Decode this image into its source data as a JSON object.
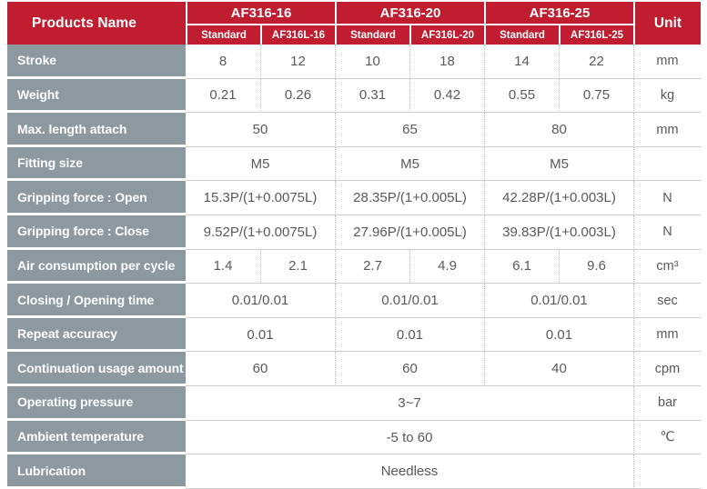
{
  "table": {
    "corner_label": "Products Name",
    "unit_label": "Unit",
    "groups": [
      {
        "label": "AF316-16",
        "sub": [
          "Standard",
          "AF316L-16"
        ]
      },
      {
        "label": "AF316-20",
        "sub": [
          "Standard",
          "AF316L-20"
        ]
      },
      {
        "label": "AF316-25",
        "sub": [
          "Standard",
          "AF316L-25"
        ]
      }
    ],
    "rows": [
      {
        "label": "Stroke",
        "span": "each",
        "values": [
          "8",
          "12",
          "10",
          "18",
          "14",
          "22"
        ],
        "unit": "mm"
      },
      {
        "label": "Weight",
        "span": "each",
        "values": [
          "0.21",
          "0.26",
          "0.31",
          "0.42",
          "0.55",
          "0.75"
        ],
        "unit": "kg"
      },
      {
        "label": "Max. length attach",
        "span": "pair",
        "values": [
          "50",
          "65",
          "80"
        ],
        "unit": "mm"
      },
      {
        "label": "Fitting size",
        "span": "pair",
        "values": [
          "M5",
          "M5",
          "M5"
        ],
        "unit": ""
      },
      {
        "label": "Gripping force : Open",
        "span": "pair",
        "values": [
          "15.3P/(1+0.0075L)",
          "28.35P/(1+0.005L)",
          "42.28P/(1+0.003L)"
        ],
        "unit": "N"
      },
      {
        "label": "Gripping force : Close",
        "span": "pair",
        "values": [
          "9.52P/(1+0.0075L)",
          "27.96P/(1+0.005L)",
          "39.83P/(1+0.003L)"
        ],
        "unit": "N"
      },
      {
        "label": "Air consumption per cycle",
        "span": "each",
        "values": [
          "1.4",
          "2.1",
          "2.7",
          "4.9",
          "6.1",
          "9.6"
        ],
        "unit": "cm³"
      },
      {
        "label": "Closing / Opening time",
        "span": "pair",
        "values": [
          "0.01/0.01",
          "0.01/0.01",
          "0.01/0.01"
        ],
        "unit": "sec"
      },
      {
        "label": "Repeat accuracy",
        "span": "pair",
        "values": [
          "0.01",
          "0.01",
          "0.01"
        ],
        "unit": "mm"
      },
      {
        "label": "Continuation usage amount",
        "span": "pair",
        "values": [
          "60",
          "60",
          "40"
        ],
        "unit": "cpm"
      },
      {
        "label": "Operating pressure",
        "span": "all",
        "values": [
          "3~7"
        ],
        "unit": "bar"
      },
      {
        "label": "Ambient temperature",
        "span": "all",
        "values": [
          "-5 to 60"
        ],
        "unit": "℃"
      },
      {
        "label": "Lubrication",
        "span": "all",
        "values": [
          "Needless"
        ],
        "unit": ""
      }
    ],
    "colors": {
      "header_red": "#c01e30",
      "label_gray": "#8c99a1",
      "value_text": "#58595b",
      "grid_line": "#cbced0",
      "dotted_line": "#b6b8ba"
    }
  }
}
